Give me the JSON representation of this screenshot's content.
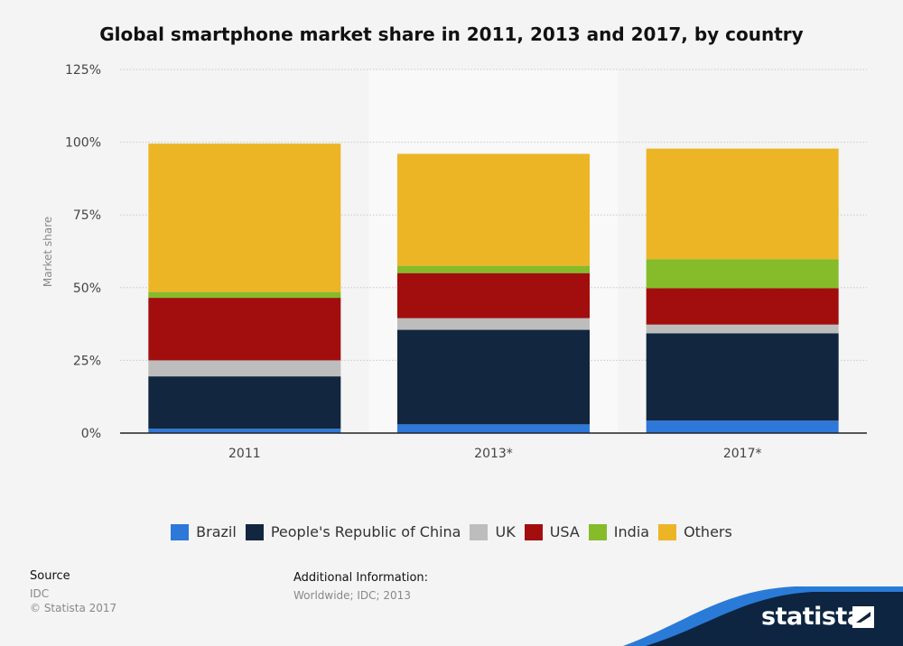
{
  "title": "Global smartphone market share in 2011, 2013 and 2017, by country",
  "colors": {
    "background": "#f4f4f4",
    "highlight_band": "#f9f9f9",
    "grid": "#c8c8c8",
    "axis": "#222222",
    "logo_band": "#0d2540",
    "logo_accent": "#2a7bd8"
  },
  "chart_data": {
    "type": "bar",
    "stacked": true,
    "categories": [
      "2011",
      "2013*",
      "2017*"
    ],
    "ylabel": "Market share",
    "xlabel": "",
    "ylim": [
      0,
      125
    ],
    "yticks": [
      0,
      25,
      50,
      75,
      100,
      125
    ],
    "ytick_labels": [
      "0%",
      "25%",
      "50%",
      "75%",
      "100%",
      "125%"
    ],
    "grid": true,
    "legend_position": "bottom",
    "highlighted_category": "2013*",
    "series": [
      {
        "name": "Brazil",
        "color": "#2d78d8",
        "values": [
          1.5,
          3,
          4.3
        ]
      },
      {
        "name": "People's Republic of China",
        "color": "#12263f",
        "values": [
          18,
          32.5,
          30
        ]
      },
      {
        "name": "UK",
        "color": "#bdbdbd",
        "values": [
          5.5,
          4,
          3
        ]
      },
      {
        "name": "USA",
        "color": "#a20e0e",
        "values": [
          21.5,
          15.5,
          12.5
        ]
      },
      {
        "name": "India",
        "color": "#86bb2a",
        "values": [
          2,
          2.5,
          10
        ]
      },
      {
        "name": "Others",
        "color": "#ecb526",
        "values": [
          51,
          38.5,
          38
        ]
      }
    ]
  },
  "footer": {
    "source_label": "Source",
    "source_value": "IDC",
    "copyright": "© Statista 2017",
    "info_label": "Additional Information:",
    "info_value": "Worldwide; IDC; 2013"
  },
  "logo": {
    "text": "statista"
  }
}
